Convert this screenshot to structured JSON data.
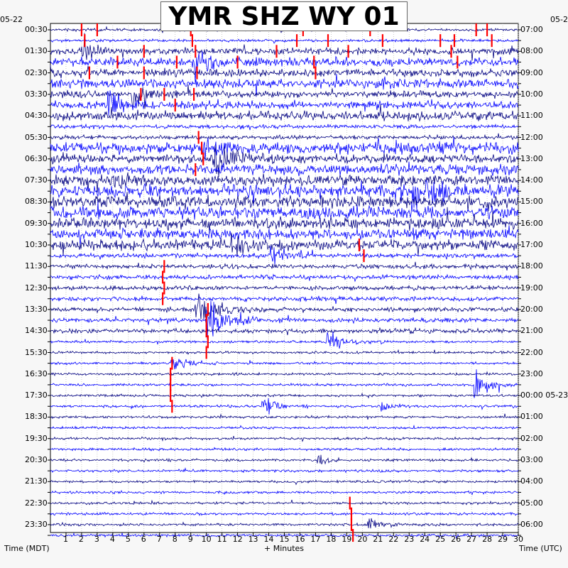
{
  "chart_data": {
    "type": "helicorder",
    "title": "YMR SHZ WY 01",
    "xlabel": "+ Minutes",
    "left_axis_label": "Time (MDT)",
    "right_axis_label": "Time (UTC)",
    "left_date": "05-22",
    "right_date_top": "05-2",
    "x_ticks": [
      1,
      2,
      3,
      4,
      5,
      6,
      7,
      8,
      9,
      10,
      11,
      12,
      13,
      14,
      15,
      16,
      17,
      18,
      19,
      20,
      21,
      22,
      23,
      24,
      25,
      26,
      27,
      28,
      29,
      30
    ],
    "xlim": [
      0,
      30
    ],
    "trace_minutes": 30,
    "trace_count": 48,
    "left_time_labels": [
      "00:30",
      "01:30",
      "02:30",
      "03:30",
      "04:30",
      "05:30",
      "06:30",
      "07:30",
      "08:30",
      "09:30",
      "10:30",
      "11:30",
      "12:30",
      "13:30",
      "14:30",
      "15:30",
      "16:30",
      "17:30",
      "18:30",
      "19:30",
      "20:30",
      "21:30",
      "22:30",
      "23:30"
    ],
    "right_time_labels": [
      "07:00",
      "08:00",
      "09:00",
      "10:00",
      "11:00",
      "12:00",
      "13:00",
      "14:00",
      "15:00",
      "16:00",
      "17:00",
      "18:00",
      "19:00",
      "20:00",
      "21:00",
      "22:00",
      "23:00",
      "00:00 05-23",
      "01:00",
      "02:00",
      "03:00",
      "04:00",
      "05:00",
      "06:00"
    ],
    "colors": {
      "trace_a": "#000080",
      "trace_b": "#0000ff",
      "clipped": "#ff0000",
      "grid": "#aaaaaa"
    },
    "grid": true
  }
}
